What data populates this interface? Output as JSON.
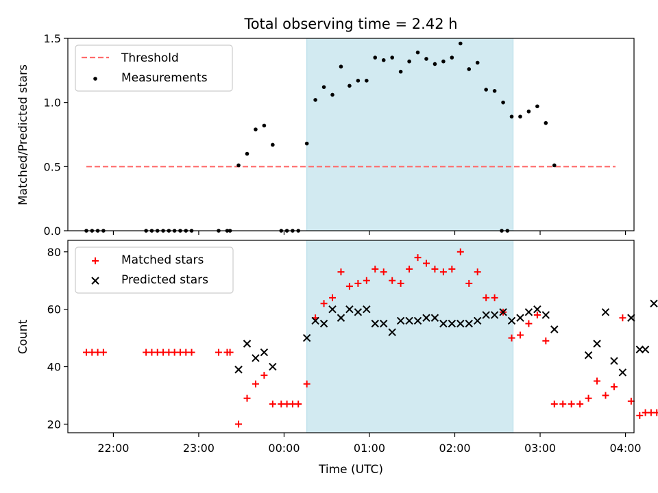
{
  "title": "Total observing time = 2.42 h",
  "colors": {
    "span": "#add8e6",
    "threshold": "#ff6b6b",
    "measurements": "#000000",
    "matched": "#ff0000",
    "predicted": "#000000"
  },
  "chart_data": [
    {
      "type": "scatter",
      "ylabel": "Matched/Predicted stars",
      "xlabel": "",
      "ylim": [
        0,
        1.5
      ],
      "yticks": [
        "0.0",
        "0.5",
        "1.0",
        "1.5"
      ],
      "xlim": [
        "21:28",
        "04:06"
      ],
      "xticks": [
        "22:00",
        "23:00",
        "00:00",
        "01:00",
        "02:00",
        "03:00",
        "04:00"
      ],
      "grid": false,
      "legend_position": "upper left",
      "shaded_span": [
        "00:16",
        "02:41"
      ],
      "threshold": {
        "name": "Threshold",
        "value": 0.5,
        "x_range": [
          "21:41",
          "03:53"
        ]
      },
      "series": [
        {
          "name": "Measurements",
          "marker": "dot",
          "points": [
            [
              "21:41",
              0
            ],
            [
              "21:45",
              0
            ],
            [
              "21:49",
              0
            ],
            [
              "21:53",
              0
            ],
            [
              "22:23",
              0
            ],
            [
              "22:27",
              0
            ],
            [
              "22:31",
              0
            ],
            [
              "22:35",
              0
            ],
            [
              "22:39",
              0
            ],
            [
              "22:43",
              0
            ],
            [
              "22:47",
              0
            ],
            [
              "22:51",
              0
            ],
            [
              "22:55",
              0
            ],
            [
              "23:14",
              0
            ],
            [
              "23:20",
              0
            ],
            [
              "23:22",
              0
            ],
            [
              "23:28",
              0.51
            ],
            [
              "23:34",
              0.6
            ],
            [
              "23:40",
              0.79
            ],
            [
              "23:46",
              0.82
            ],
            [
              "23:52",
              0.67
            ],
            [
              "23:58",
              0
            ],
            [
              "00:02",
              0
            ],
            [
              "00:06",
              0
            ],
            [
              "00:10",
              0
            ],
            [
              "00:16",
              0.68
            ],
            [
              "00:22",
              1.02
            ],
            [
              "00:28",
              1.12
            ],
            [
              "00:34",
              1.06
            ],
            [
              "00:40",
              1.28
            ],
            [
              "00:46",
              1.13
            ],
            [
              "00:52",
              1.17
            ],
            [
              "00:58",
              1.17
            ],
            [
              "01:04",
              1.35
            ],
            [
              "01:10",
              1.33
            ],
            [
              "01:16",
              1.35
            ],
            [
              "01:22",
              1.24
            ],
            [
              "01:28",
              1.32
            ],
            [
              "01:34",
              1.39
            ],
            [
              "01:40",
              1.34
            ],
            [
              "01:46",
              1.3
            ],
            [
              "01:52",
              1.32
            ],
            [
              "01:58",
              1.35
            ],
            [
              "02:04",
              1.46
            ],
            [
              "02:10",
              1.26
            ],
            [
              "02:16",
              1.31
            ],
            [
              "02:22",
              1.1
            ],
            [
              "02:28",
              1.09
            ],
            [
              "02:34",
              1.0
            ],
            [
              "02:40",
              0.89
            ],
            [
              "02:46",
              0.89
            ],
            [
              "02:52",
              0.93
            ],
            [
              "02:58",
              0.97
            ],
            [
              "03:04",
              0.84
            ],
            [
              "03:10",
              0.51
            ],
            [
              "02:33",
              0
            ],
            [
              "02:37",
              0
            ]
          ]
        }
      ]
    },
    {
      "type": "scatter",
      "ylabel": "Count",
      "xlabel": "Time (UTC)",
      "ylim": [
        17,
        84
      ],
      "yticks": [
        "20",
        "40",
        "60",
        "80"
      ],
      "xlim": [
        "21:28",
        "04:06"
      ],
      "xticks": [
        "22:00",
        "23:00",
        "00:00",
        "01:00",
        "02:00",
        "03:00",
        "04:00"
      ],
      "grid": false,
      "legend_position": "upper left",
      "shaded_span": [
        "00:16",
        "02:41"
      ],
      "series": [
        {
          "name": "Matched stars",
          "marker": "plus",
          "points": [
            [
              "21:41",
              45
            ],
            [
              "21:45",
              45
            ],
            [
              "21:49",
              45
            ],
            [
              "21:53",
              45
            ],
            [
              "22:23",
              45
            ],
            [
              "22:27",
              45
            ],
            [
              "22:31",
              45
            ],
            [
              "22:35",
              45
            ],
            [
              "22:39",
              45
            ],
            [
              "22:43",
              45
            ],
            [
              "22:47",
              45
            ],
            [
              "22:51",
              45
            ],
            [
              "22:55",
              45
            ],
            [
              "23:14",
              45
            ],
            [
              "23:20",
              45
            ],
            [
              "23:22",
              45
            ],
            [
              "23:28",
              20
            ],
            [
              "23:34",
              29
            ],
            [
              "23:40",
              34
            ],
            [
              "23:46",
              37
            ],
            [
              "23:52",
              27
            ],
            [
              "23:58",
              27
            ],
            [
              "00:02",
              27
            ],
            [
              "00:06",
              27
            ],
            [
              "00:10",
              27
            ],
            [
              "00:16",
              34
            ],
            [
              "00:22",
              57
            ],
            [
              "00:28",
              62
            ],
            [
              "00:34",
              64
            ],
            [
              "00:40",
              73
            ],
            [
              "00:46",
              68
            ],
            [
              "00:52",
              69
            ],
            [
              "00:58",
              70
            ],
            [
              "01:04",
              74
            ],
            [
              "01:10",
              73
            ],
            [
              "01:16",
              70
            ],
            [
              "01:22",
              69
            ],
            [
              "01:28",
              74
            ],
            [
              "01:34",
              78
            ],
            [
              "01:40",
              76
            ],
            [
              "01:46",
              74
            ],
            [
              "01:52",
              73
            ],
            [
              "01:58",
              74
            ],
            [
              "02:04",
              80
            ],
            [
              "02:10",
              69
            ],
            [
              "02:16",
              73
            ],
            [
              "02:22",
              64
            ],
            [
              "02:28",
              64
            ],
            [
              "02:34",
              59
            ],
            [
              "02:40",
              50
            ],
            [
              "02:46",
              51
            ],
            [
              "02:52",
              55
            ],
            [
              "02:58",
              58
            ],
            [
              "03:04",
              49
            ],
            [
              "03:10",
              27
            ],
            [
              "03:16",
              27
            ],
            [
              "03:22",
              27
            ],
            [
              "03:28",
              27
            ],
            [
              "03:34",
              29
            ],
            [
              "03:40",
              35
            ],
            [
              "03:46",
              30
            ],
            [
              "03:52",
              33
            ],
            [
              "03:58",
              57
            ],
            [
              "04:04",
              28
            ],
            [
              "04:10",
              23
            ],
            [
              "04:14",
              24
            ],
            [
              "04:18",
              24
            ],
            [
              "04:22",
              24
            ],
            [
              "04:26",
              24
            ]
          ]
        },
        {
          "name": "Predicted stars",
          "marker": "x",
          "points": [
            [
              "23:28",
              39
            ],
            [
              "23:34",
              48
            ],
            [
              "23:40",
              43
            ],
            [
              "23:46",
              45
            ],
            [
              "23:52",
              40
            ],
            [
              "00:16",
              50
            ],
            [
              "00:22",
              56
            ],
            [
              "00:28",
              55
            ],
            [
              "00:34",
              60
            ],
            [
              "00:40",
              57
            ],
            [
              "00:46",
              60
            ],
            [
              "00:52",
              59
            ],
            [
              "00:58",
              60
            ],
            [
              "01:04",
              55
            ],
            [
              "01:10",
              55
            ],
            [
              "01:16",
              52
            ],
            [
              "01:22",
              56
            ],
            [
              "01:28",
              56
            ],
            [
              "01:34",
              56
            ],
            [
              "01:40",
              57
            ],
            [
              "01:46",
              57
            ],
            [
              "01:52",
              55
            ],
            [
              "01:58",
              55
            ],
            [
              "02:04",
              55
            ],
            [
              "02:10",
              55
            ],
            [
              "02:16",
              56
            ],
            [
              "02:22",
              58
            ],
            [
              "02:28",
              58
            ],
            [
              "02:34",
              59
            ],
            [
              "02:40",
              56
            ],
            [
              "02:46",
              57
            ],
            [
              "02:52",
              59
            ],
            [
              "02:58",
              60
            ],
            [
              "03:04",
              58
            ],
            [
              "03:10",
              53
            ],
            [
              "03:34",
              44
            ],
            [
              "03:40",
              48
            ],
            [
              "03:46",
              59
            ],
            [
              "03:52",
              42
            ],
            [
              "03:58",
              38
            ],
            [
              "04:04",
              57
            ],
            [
              "04:10",
              46
            ],
            [
              "04:14",
              46
            ],
            [
              "04:20",
              62
            ]
          ]
        }
      ]
    }
  ]
}
